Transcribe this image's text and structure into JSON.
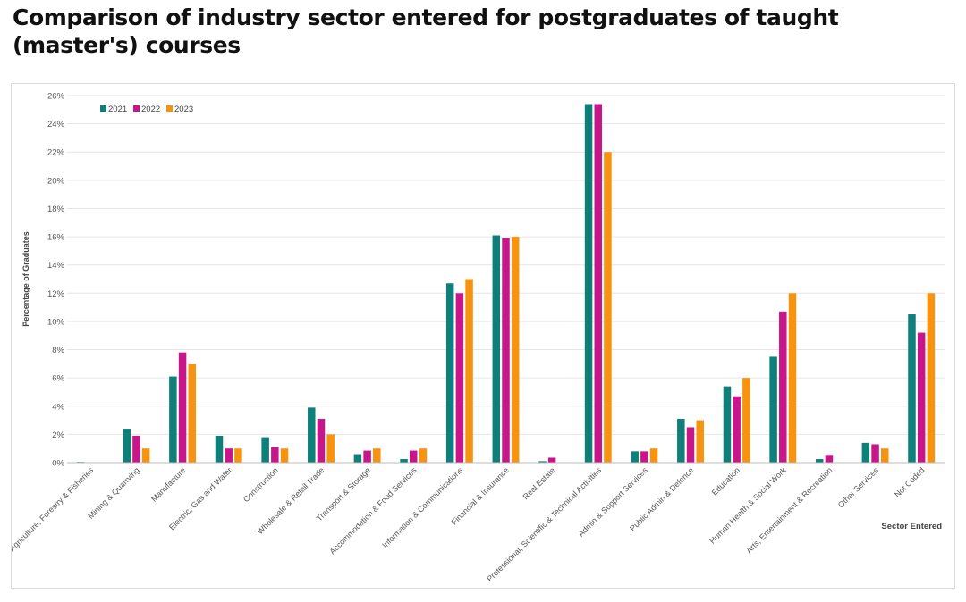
{
  "title": "Comparison of industry sector entered for postgraduates of taught (master's) courses",
  "colors": {
    "2021": "#0f7f7a",
    "2022": "#c8168a",
    "2023": "#f7930f",
    "grid": "#e6e6e6",
    "text": "#444444"
  },
  "chart_data": {
    "type": "bar",
    "title": "Comparison of industry sector entered for postgraduates of taught (master's) courses",
    "xlabel": "Sector Entered",
    "ylabel": "Percentage of Graduates",
    "ylim": [
      0,
      26
    ],
    "yticks": [
      0,
      2,
      4,
      6,
      8,
      10,
      12,
      14,
      16,
      18,
      20,
      22,
      24,
      26
    ],
    "ytick_labels": [
      "0%",
      "2%",
      "4%",
      "6%",
      "8%",
      "10%",
      "12%",
      "14%",
      "16%",
      "18%",
      "20%",
      "22%",
      "24%",
      "26%"
    ],
    "legend_position": "top-left",
    "grid": true,
    "categories": [
      "Agriculture, Forestry & Fisheries",
      "Mining & Quarrying",
      "Manufacture",
      "Electric, Gas and Water",
      "Construction",
      "Wholesale & Retail Trade",
      "Transport & Storage",
      "Accommodation & Food Services",
      "Information & Communications",
      "Financial & Insurance",
      "Real Estate",
      "Professional, Scientific & Technical Activities",
      "Admin & Support Services",
      "Public Admin & Defence",
      "Education",
      "Human Health & Social Work",
      "Arts, Entertainment & Recreation",
      "Other Services",
      "Not Coded"
    ],
    "series": [
      {
        "name": "2021",
        "values": [
          0.05,
          2.4,
          6.1,
          1.9,
          1.8,
          3.9,
          0.6,
          0.25,
          12.7,
          16.1,
          0.1,
          25.4,
          0.8,
          3.1,
          5.4,
          7.5,
          0.25,
          1.4,
          10.5
        ]
      },
      {
        "name": "2022",
        "values": [
          0.0,
          1.9,
          7.8,
          1.0,
          1.1,
          3.1,
          0.85,
          0.85,
          12.0,
          15.9,
          0.35,
          25.4,
          0.8,
          2.5,
          4.7,
          10.7,
          0.55,
          1.3,
          9.2
        ]
      },
      {
        "name": "2023",
        "values": [
          0.0,
          1.0,
          7.0,
          1.0,
          1.0,
          2.0,
          1.0,
          1.0,
          13.0,
          16.0,
          0.0,
          22.0,
          1.0,
          3.0,
          6.0,
          12.0,
          0.0,
          1.0,
          12.0
        ]
      }
    ]
  }
}
